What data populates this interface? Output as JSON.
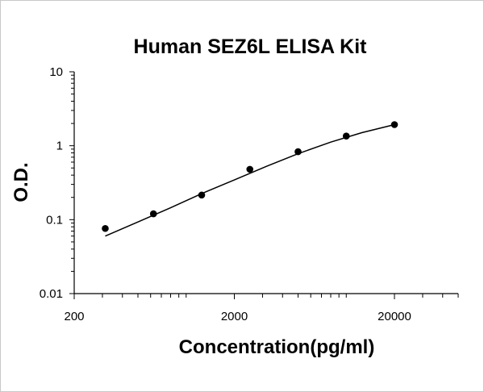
{
  "chart_data": {
    "type": "scatter",
    "title": "Human SEZ6L ELISA Kit",
    "xlabel": "Concentration(pg/ml)",
    "ylabel": "O.D.",
    "x_scale": "log",
    "y_scale": "log",
    "xlim": [
      200,
      50000
    ],
    "ylim": [
      0.01,
      10
    ],
    "x_ticks": [
      {
        "value": 200,
        "label": "200"
      },
      {
        "value": 2000,
        "label": "2000"
      },
      {
        "value": 20000,
        "label": "20000"
      }
    ],
    "y_ticks": [
      {
        "value": 0.01,
        "label": "0.01"
      },
      {
        "value": 0.1,
        "label": "0.1"
      },
      {
        "value": 1,
        "label": "1"
      },
      {
        "value": 10,
        "label": "10"
      }
    ],
    "grid": false,
    "legend": "none",
    "points": [
      {
        "x": 312.5,
        "y": 0.076
      },
      {
        "x": 625,
        "y": 0.12
      },
      {
        "x": 1250,
        "y": 0.215
      },
      {
        "x": 2500,
        "y": 0.48
      },
      {
        "x": 5000,
        "y": 0.83
      },
      {
        "x": 10000,
        "y": 1.35
      },
      {
        "x": 20000,
        "y": 1.93
      }
    ],
    "fit_curve": {
      "x": [
        312.5,
        500,
        800,
        1250,
        2000,
        3200,
        5000,
        8000,
        12500,
        20000
      ],
      "y": [
        0.06,
        0.093,
        0.145,
        0.225,
        0.345,
        0.53,
        0.78,
        1.12,
        1.5,
        1.93
      ]
    },
    "colors": {
      "marker": "#000000",
      "line": "#000000",
      "axis": "#000000"
    }
  }
}
